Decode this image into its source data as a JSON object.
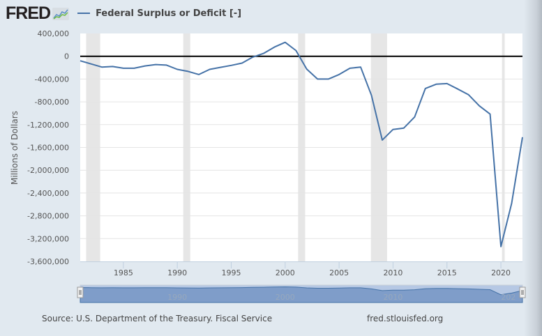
{
  "header": {
    "logo_text": "FRED",
    "logo_icon": "chart-line-icon",
    "series_label": "Federal Surplus or Deficit [-]",
    "series_color": "#4572a7"
  },
  "footer": {
    "source": "Source: U.S. Department of the Treasury. Fiscal Service",
    "site": "fred.stlouisfed.org"
  },
  "navigator": {
    "tick_labels": [
      "1990",
      "2000",
      "2010",
      "202"
    ],
    "handle_left_icon": "drag-handle-icon",
    "handle_right_icon": "drag-handle-icon"
  },
  "chart_data": {
    "type": "line",
    "title": "",
    "xlabel": "",
    "ylabel": "Millions of Dollars",
    "ylim": [
      -3600000,
      400000
    ],
    "xlim": [
      1981,
      2022
    ],
    "grid": true,
    "legend": "top-left",
    "yticks": [
      400000,
      0,
      -400000,
      -800000,
      -1200000,
      -1600000,
      -2000000,
      -2400000,
      -2800000,
      -3200000,
      -3600000
    ],
    "ytick_labels": [
      "400,000",
      "0",
      "-400,000",
      "-800,000",
      "-1,200,000",
      "-1,600,000",
      "-2,000,000",
      "-2,400,000",
      "-2,800,000",
      "-3,200,000",
      "-3,600,000"
    ],
    "xticks": [
      1985,
      1990,
      1995,
      2000,
      2005,
      2010,
      2015,
      2020
    ],
    "xtick_labels": [
      "1985",
      "1990",
      "1995",
      "2000",
      "2005",
      "2010",
      "2015",
      "2020"
    ],
    "recessions": [
      [
        1981.55,
        1982.85
      ],
      [
        1990.55,
        1991.2
      ],
      [
        2001.2,
        2001.85
      ],
      [
        2007.95,
        2009.45
      ],
      [
        2020.1,
        2020.35
      ]
    ],
    "series": [
      {
        "name": "Federal Surplus or Deficit [-]",
        "color": "#4572a7",
        "x": [
          1981,
          1982,
          1983,
          1984,
          1985,
          1986,
          1987,
          1988,
          1989,
          1990,
          1991,
          1992,
          1993,
          1994,
          1995,
          1996,
          1997,
          1998,
          1999,
          2000,
          2001,
          2002,
          2003,
          2004,
          2005,
          2006,
          2007,
          2008,
          2009,
          2010,
          2011,
          2012,
          2013,
          2014,
          2015,
          2016,
          2017,
          2018,
          2019,
          2020,
          2021,
          2022
        ],
        "values": [
          -80000,
          -135000,
          -190000,
          -180000,
          -210000,
          -210000,
          -170000,
          -145000,
          -155000,
          -230000,
          -265000,
          -320000,
          -230000,
          -195000,
          -160000,
          -120000,
          -15000,
          50000,
          160000,
          245000,
          100000,
          -225000,
          -400000,
          -400000,
          -320000,
          -210000,
          -190000,
          -685000,
          -1470000,
          -1285000,
          -1260000,
          -1065000,
          -565000,
          -490000,
          -480000,
          -575000,
          -675000,
          -870000,
          -1015000,
          -3340000,
          -2580000,
          -1420000
        ]
      }
    ]
  }
}
